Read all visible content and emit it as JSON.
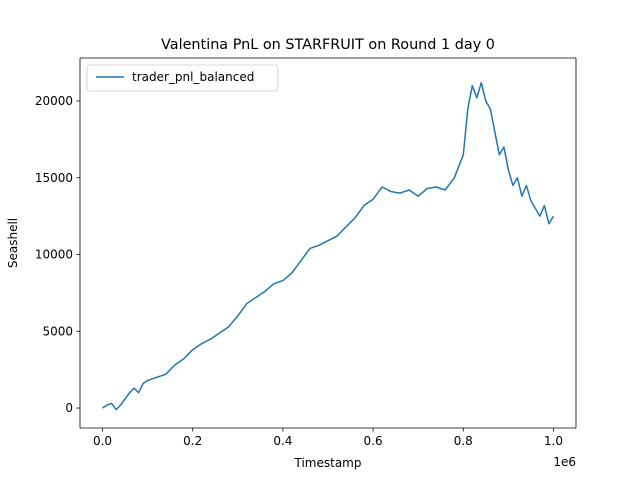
{
  "chart_data": {
    "type": "line",
    "title": "Valentina PnL on STARFRUIT on Round 1 day 0",
    "xlabel": "Timestamp",
    "ylabel": "Seashell",
    "x_offset_label": "1e6",
    "xlim": [
      -50000,
      1050000
    ],
    "ylim": [
      -1300,
      22800
    ],
    "xticks": [
      0,
      200000,
      400000,
      600000,
      800000,
      1000000
    ],
    "xtick_labels": [
      "0.0",
      "0.2",
      "0.4",
      "0.6",
      "0.8",
      "1.0"
    ],
    "yticks": [
      0,
      5000,
      10000,
      15000,
      20000
    ],
    "ytick_labels": [
      "0",
      "5000",
      "10000",
      "15000",
      "20000"
    ],
    "grid": false,
    "legend": {
      "position": "top-left"
    },
    "series": [
      {
        "name": "trader_pnl_balanced",
        "color": "#1f77b4",
        "x": [
          0,
          10000,
          20000,
          30000,
          40000,
          50000,
          60000,
          70000,
          80000,
          90000,
          100000,
          120000,
          140000,
          160000,
          180000,
          200000,
          220000,
          240000,
          260000,
          280000,
          300000,
          320000,
          340000,
          360000,
          380000,
          400000,
          420000,
          440000,
          460000,
          480000,
          500000,
          520000,
          540000,
          560000,
          580000,
          600000,
          620000,
          640000,
          660000,
          680000,
          700000,
          720000,
          740000,
          760000,
          780000,
          800000,
          810000,
          820000,
          830000,
          840000,
          850000,
          860000,
          870000,
          880000,
          890000,
          900000,
          910000,
          920000,
          930000,
          940000,
          950000,
          960000,
          970000,
          980000,
          990000,
          1000000
        ],
        "values": [
          0,
          200,
          300,
          -100,
          200,
          600,
          1000,
          1300,
          1000,
          1600,
          1800,
          2000,
          2200,
          2800,
          3200,
          3800,
          4200,
          4500,
          4900,
          5300,
          6000,
          6800,
          7200,
          7600,
          8100,
          8300,
          8800,
          9600,
          10400,
          10600,
          10900,
          11200,
          11800,
          12400,
          13200,
          13600,
          14400,
          14100,
          14000,
          14200,
          13800,
          14300,
          14400,
          14200,
          15000,
          16500,
          19500,
          21000,
          20200,
          21200,
          20000,
          19500,
          18000,
          16500,
          17000,
          15500,
          14500,
          15000,
          13800,
          14500,
          13500,
          13000,
          12500,
          13200,
          12000,
          12500
        ]
      }
    ]
  }
}
